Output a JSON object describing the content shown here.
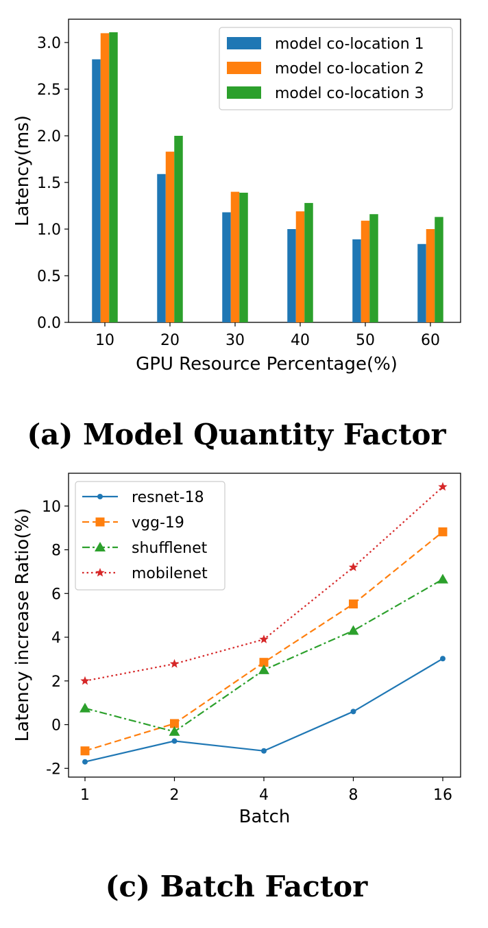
{
  "chart_data": [
    {
      "type": "bar",
      "caption": "(a) Model Quantity Factor",
      "xlabel": "GPU Resource Percentage(%)",
      "ylabel": "Latency(ms)",
      "categories": [
        "10",
        "20",
        "30",
        "40",
        "50",
        "60"
      ],
      "ylim": [
        0,
        3.25
      ],
      "yticks": [
        "0.0",
        "0.5",
        "1.0",
        "1.5",
        "2.0",
        "2.5",
        "3.0"
      ],
      "grid": false,
      "legend_position": "top-right",
      "series": [
        {
          "name": "model co-location 1",
          "color": "#1f77b4",
          "values": [
            2.82,
            1.59,
            1.18,
            1.0,
            0.89,
            0.84
          ]
        },
        {
          "name": "model co-location 2",
          "color": "#ff7f0e",
          "values": [
            3.1,
            1.83,
            1.4,
            1.19,
            1.09,
            1.0
          ]
        },
        {
          "name": "model co-location 3",
          "color": "#2ca02c",
          "values": [
            3.11,
            2.0,
            1.39,
            1.28,
            1.16,
            1.13
          ]
        }
      ]
    },
    {
      "type": "line",
      "caption": "(c) Batch Factor",
      "xlabel": "Batch",
      "ylabel": "Latency increase Ratio(%)",
      "categories": [
        "1",
        "2",
        "4",
        "8",
        "16"
      ],
      "ylim": [
        -2.4,
        11.5
      ],
      "yticks": [
        "-2",
        "0",
        "2",
        "4",
        "6",
        "8",
        "10"
      ],
      "grid": false,
      "legend_position": "top-left",
      "series": [
        {
          "name": "resnet-18",
          "color": "#1f77b4",
          "marker": "circle",
          "dash": "solid",
          "values": [
            -1.7,
            -0.75,
            -1.2,
            0.6,
            3.02
          ]
        },
        {
          "name": "vgg-19",
          "color": "#ff7f0e",
          "marker": "square",
          "dash": "dashed",
          "values": [
            -1.2,
            0.05,
            2.85,
            5.52,
            8.82
          ]
        },
        {
          "name": "shufflenet",
          "color": "#2ca02c",
          "marker": "triangle",
          "dash": "dashdot",
          "values": [
            0.75,
            -0.32,
            2.5,
            4.3,
            6.65
          ]
        },
        {
          "name": "mobilenet",
          "color": "#d62728",
          "marker": "star",
          "dash": "dotted",
          "values": [
            2.0,
            2.78,
            3.9,
            7.2,
            10.88
          ]
        }
      ]
    }
  ]
}
